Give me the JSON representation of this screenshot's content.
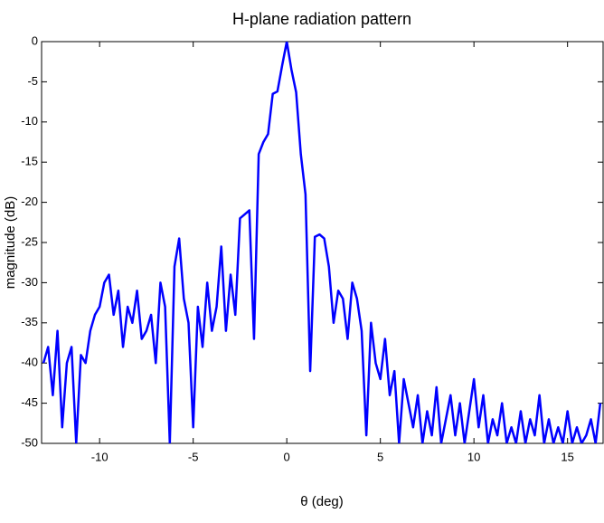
{
  "chart_data": {
    "type": "line",
    "title": "H-plane radiation pattern",
    "xlabel": "θ (deg)",
    "ylabel": "magnitude (dB)",
    "x": [
      -13,
      -12.75,
      -12.5,
      -12.25,
      -12,
      -11.75,
      -11.5,
      -11.25,
      -11,
      -10.75,
      -10.5,
      -10.25,
      -10,
      -9.75,
      -9.5,
      -9.25,
      -9,
      -8.75,
      -8.5,
      -8.25,
      -8,
      -7.75,
      -7.5,
      -7.25,
      -7,
      -6.75,
      -6.5,
      -6.25,
      -6,
      -5.75,
      -5.5,
      -5.25,
      -5,
      -4.75,
      -4.5,
      -4.25,
      -4,
      -3.75,
      -3.5,
      -3.25,
      -3,
      -2.75,
      -2.5,
      -2.25,
      -2,
      -1.75,
      -1.5,
      -1.25,
      -1,
      -0.75,
      -0.5,
      -0.25,
      0,
      0.25,
      0.5,
      0.75,
      1,
      1.25,
      1.5,
      1.75,
      2,
      2.25,
      2.5,
      2.75,
      3,
      3.25,
      3.5,
      3.75,
      4,
      4.25,
      4.5,
      4.75,
      5,
      5.25,
      5.5,
      5.75,
      6,
      6.25,
      6.5,
      6.75,
      7,
      7.25,
      7.5,
      7.75,
      8,
      8.25,
      8.5,
      8.75,
      9,
      9.25,
      9.5,
      9.75,
      10,
      10.25,
      10.5,
      10.75,
      11,
      11.25,
      11.5,
      11.75,
      12,
      12.25,
      12.5,
      12.75,
      13,
      13.25,
      13.5,
      13.75,
      14,
      14.25,
      14.5,
      14.75,
      15,
      15.25,
      15.5,
      15.75,
      16,
      16.25,
      16.5,
      16.75
    ],
    "values": [
      -40,
      -38,
      -44,
      -36,
      -48,
      -40,
      -38,
      -50,
      -39,
      -40,
      -36,
      -34,
      -33,
      -30,
      -29,
      -34,
      -31,
      -38,
      -33,
      -35,
      -31,
      -37,
      -36,
      -34,
      -40,
      -30,
      -33,
      -50,
      -28,
      -24.5,
      -32,
      -35,
      -48,
      -33,
      -38,
      -30,
      -36,
      -33,
      -25.5,
      -36,
      -29,
      -34,
      -22,
      -21.5,
      -21,
      -37,
      -14,
      -12.5,
      -11.5,
      -6.5,
      -6.2,
      -3,
      0,
      -3.5,
      -6.3,
      -14,
      -19,
      -41,
      -24.3,
      -24,
      -24.5,
      -28,
      -35,
      -31,
      -32,
      -37,
      -30,
      -32,
      -36,
      -49,
      -35,
      -40,
      -42,
      -37,
      -44,
      -41,
      -50,
      -42,
      -45,
      -48,
      -44,
      -50,
      -46,
      -49,
      -43,
      -50,
      -47,
      -44,
      -49,
      -45,
      -50,
      -46,
      -42,
      -48,
      -44,
      -50,
      -47,
      -49,
      -45,
      -50,
      -48,
      -50,
      -46,
      -50,
      -47,
      -49,
      -44,
      -50,
      -47,
      -50,
      -48,
      -50,
      -46,
      -50,
      -48,
      -50,
      -49,
      -47,
      -50,
      -45
    ],
    "color": "#0000ff",
    "xlim": [
      -13.1,
      16.9
    ],
    "xticks": [
      -10,
      -5,
      0,
      5,
      10,
      15
    ],
    "ylim": [
      -50,
      0
    ],
    "yticks": [
      0,
      -5,
      -10,
      -15,
      -20,
      -25,
      -30,
      -35,
      -40,
      -45,
      -50
    ]
  }
}
